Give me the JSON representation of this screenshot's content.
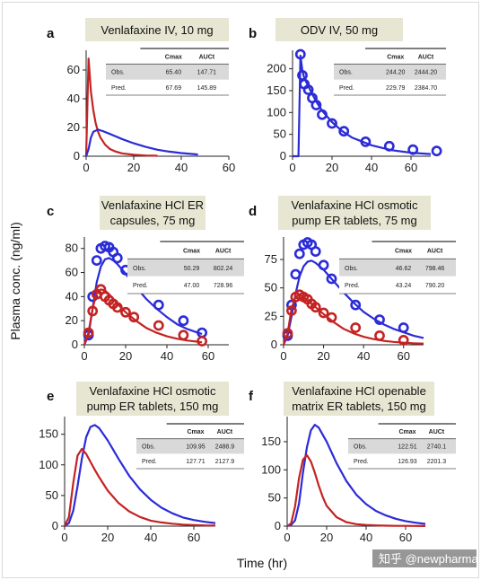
{
  "figure": {
    "xlabel": "Time (hr)",
    "ylabel": "Plasma conc. (ng/ml)",
    "watermark": "知乎 @newpharma",
    "colors": {
      "predicted_a": "#c42323",
      "observed": "#2b2bd8",
      "title_box": "#e6e6d2",
      "table_obs_row": "#d9d9d9"
    }
  },
  "table_headers": {
    "cmax": "Cmax",
    "auct": "AUCt",
    "obs": "Obs.",
    "pred": "Pred."
  },
  "chart_data": [
    {
      "type": "line",
      "letter": "a",
      "title": [
        "Venlafaxine IV, 10 mg"
      ],
      "xlim": [
        0,
        60
      ],
      "ylim": [
        0,
        70
      ],
      "xticks": [
        0,
        20,
        40,
        60
      ],
      "yticks": [
        0,
        20,
        40,
        60
      ],
      "table": {
        "obs": [
          "65.40",
          "147.71"
        ],
        "pred": [
          "67.69",
          "145.89"
        ]
      },
      "series": [
        {
          "color": "red",
          "type": "line",
          "x": [
            0,
            1,
            2,
            3,
            4,
            5,
            6,
            8,
            10,
            12,
            15,
            20,
            25,
            30
          ],
          "y": [
            0,
            68,
            45,
            32,
            23,
            17,
            13,
            8,
            5,
            3.5,
            2,
            1,
            0.5,
            0.3
          ]
        },
        {
          "color": "blue",
          "type": "line",
          "x": [
            0,
            1,
            2,
            3,
            5,
            7,
            10,
            15,
            20,
            25,
            30,
            35,
            40,
            45,
            47
          ],
          "y": [
            0,
            5,
            13,
            17,
            18.5,
            17.5,
            15.5,
            12,
            9,
            6.5,
            4.5,
            3.2,
            2.2,
            1.5,
            1.2
          ]
        }
      ]
    },
    {
      "type": "scatter",
      "letter": "b",
      "title": [
        "ODV IV, 50 mg"
      ],
      "xlim": [
        0,
        70
      ],
      "ylim": [
        0,
        230
      ],
      "xticks": [
        0,
        20,
        40,
        60
      ],
      "yticks": [
        0,
        50,
        100,
        150,
        200
      ],
      "table": {
        "obs": [
          "244.20",
          "2444.20"
        ],
        "pred": [
          "229.79",
          "2384.70"
        ]
      },
      "series": [
        {
          "color": "blue",
          "type": "line",
          "x": [
            0,
            3,
            4,
            5,
            6,
            8,
            10,
            12,
            15,
            20,
            25,
            30,
            40,
            50,
            60,
            70
          ],
          "y": [
            0,
            0,
            230,
            195,
            178,
            160,
            142,
            125,
            104,
            78,
            58,
            43,
            25,
            14,
            8,
            5
          ]
        },
        {
          "color": "blue",
          "type": "points",
          "x": [
            4,
            5,
            6,
            8,
            10,
            12,
            15,
            20,
            26,
            37,
            49,
            61,
            73
          ],
          "y": [
            233,
            185,
            165,
            152,
            133,
            117,
            95,
            75,
            57,
            33,
            23,
            15,
            12
          ]
        }
      ]
    },
    {
      "type": "line",
      "letter": "c",
      "title": [
        "Venlafaxine HCl ER",
        "capsules, 75 mg"
      ],
      "xlim": [
        0,
        70
      ],
      "ylim": [
        0,
        85
      ],
      "xticks": [
        0,
        20,
        40,
        60
      ],
      "yticks": [
        0,
        20,
        40,
        60,
        80
      ],
      "table": {
        "obs": [
          "50.29",
          "802.24"
        ],
        "pred": [
          "47.00",
          "728.96"
        ]
      },
      "series": [
        {
          "color": "blue",
          "type": "line",
          "x": [
            0,
            2,
            4,
            6,
            8,
            10,
            12,
            14,
            16,
            20,
            25,
            30,
            35,
            40,
            45,
            50,
            55,
            57
          ],
          "y": [
            0,
            8,
            30,
            52,
            65,
            71,
            72,
            70,
            67,
            59,
            48,
            38,
            30,
            23,
            17,
            13,
            10,
            9
          ]
        },
        {
          "color": "blue",
          "type": "points",
          "x": [
            2,
            4,
            6,
            8,
            10,
            12,
            14,
            16,
            20,
            24,
            36,
            48,
            57
          ],
          "y": [
            8,
            40,
            70,
            80,
            82,
            81,
            77,
            72,
            62,
            54,
            33,
            20,
            10
          ]
        },
        {
          "color": "red",
          "type": "line",
          "x": [
            0,
            2,
            4,
            6,
            8,
            10,
            12,
            14,
            16,
            20,
            25,
            30,
            35,
            40,
            45,
            50,
            55,
            57
          ],
          "y": [
            0,
            10,
            30,
            44,
            46,
            45,
            42,
            38,
            34,
            27,
            20,
            14,
            10,
            7,
            5,
            3.5,
            2.5,
            2
          ]
        },
        {
          "color": "red",
          "type": "points",
          "x": [
            2,
            4,
            6,
            8,
            10,
            12,
            14,
            16,
            20,
            24,
            36,
            48,
            57
          ],
          "y": [
            10,
            28,
            42,
            46,
            40,
            37,
            34,
            31,
            27,
            23,
            16,
            8,
            3
          ]
        }
      ]
    },
    {
      "type": "line",
      "letter": "d",
      "title": [
        "Venlafaxine HCl osmotic",
        "pump ER tablets, 75 mg"
      ],
      "xlim": [
        0,
        70
      ],
      "ylim": [
        0,
        90
      ],
      "xticks": [
        0,
        20,
        40,
        60
      ],
      "yticks": [
        0,
        25,
        50,
        75
      ],
      "table": {
        "obs": [
          "46.62",
          "798.46"
        ],
        "pred": [
          "43.24",
          "790.20"
        ]
      },
      "series": [
        {
          "color": "blue",
          "type": "line",
          "x": [
            0,
            2,
            4,
            6,
            8,
            10,
            12,
            14,
            16,
            20,
            25,
            30,
            35,
            40,
            45,
            50,
            55,
            60,
            65,
            70
          ],
          "y": [
            0,
            8,
            25,
            45,
            60,
            69,
            73,
            74,
            72,
            66,
            56,
            46,
            37,
            29,
            23,
            18,
            14,
            11,
            8,
            6
          ]
        },
        {
          "color": "blue",
          "type": "points",
          "x": [
            2,
            4,
            6,
            8,
            10,
            12,
            14,
            16,
            20,
            24,
            36,
            48,
            60
          ],
          "y": [
            8,
            35,
            62,
            80,
            88,
            90,
            88,
            82,
            70,
            58,
            35,
            22,
            15
          ]
        },
        {
          "color": "red",
          "type": "line",
          "x": [
            0,
            2,
            4,
            6,
            8,
            10,
            12,
            14,
            16,
            20,
            25,
            30,
            35,
            40,
            45,
            50,
            55,
            60,
            65,
            70
          ],
          "y": [
            0,
            10,
            32,
            42,
            44,
            42,
            39,
            36,
            33,
            27,
            20,
            14,
            10,
            7,
            5,
            3.5,
            2.5,
            1.8,
            1.3,
            1
          ]
        },
        {
          "color": "red",
          "type": "points",
          "x": [
            2,
            4,
            6,
            8,
            10,
            12,
            14,
            16,
            20,
            24,
            36,
            48,
            60
          ],
          "y": [
            10,
            30,
            42,
            44,
            42,
            40,
            36,
            33,
            28,
            24,
            15,
            8,
            4
          ]
        }
      ]
    },
    {
      "type": "line",
      "letter": "e",
      "title": [
        "Venlafaxine HCl osmotic",
        "pump ER tablets, 150 mg"
      ],
      "xlim": [
        0,
        70
      ],
      "ylim": [
        0,
        170
      ],
      "xticks": [
        0,
        20,
        40,
        60
      ],
      "yticks": [
        0,
        50,
        100,
        150
      ],
      "table": {
        "obs": [
          "109.95",
          "2488.9"
        ],
        "pred": [
          "127.71",
          "2127.9"
        ]
      },
      "series": [
        {
          "color": "blue",
          "type": "line",
          "x": [
            0,
            2,
            4,
            6,
            8,
            10,
            12,
            14,
            16,
            20,
            25,
            30,
            35,
            40,
            45,
            50,
            55,
            60,
            65,
            70
          ],
          "y": [
            0,
            5,
            25,
            65,
            110,
            145,
            162,
            165,
            160,
            140,
            110,
            82,
            60,
            43,
            30,
            21,
            14,
            10,
            7,
            5
          ]
        },
        {
          "color": "red",
          "type": "line",
          "x": [
            0,
            2,
            4,
            6,
            8,
            10,
            12,
            14,
            16,
            20,
            25,
            30,
            35,
            40,
            45,
            50,
            55,
            60,
            65,
            70
          ],
          "y": [
            0,
            15,
            70,
            115,
            126,
            118,
            105,
            92,
            80,
            58,
            38,
            24,
            15,
            9,
            6,
            4,
            2.5,
            1.8,
            1.2,
            1
          ]
        }
      ]
    },
    {
      "type": "line",
      "letter": "f",
      "title": [
        "Venlafaxine HCl openable",
        "matrix ER tablets, 150 mg"
      ],
      "xlim": [
        0,
        70
      ],
      "ylim": [
        0,
        185
      ],
      "xticks": [
        0,
        20,
        40,
        60
      ],
      "yticks": [
        0,
        50,
        100,
        150
      ],
      "table": {
        "obs": [
          "122.51",
          "2740.1"
        ],
        "pred": [
          "126.93",
          "2201.3"
        ]
      },
      "series": [
        {
          "color": "blue",
          "type": "line",
          "x": [
            0,
            2,
            4,
            6,
            8,
            10,
            12,
            14,
            16,
            20,
            25,
            30,
            35,
            40,
            45,
            50,
            55,
            60,
            65,
            70
          ],
          "y": [
            0,
            2,
            10,
            40,
            95,
            140,
            170,
            180,
            175,
            150,
            112,
            80,
            56,
            39,
            27,
            19,
            13,
            9,
            6,
            4
          ]
        },
        {
          "color": "red",
          "type": "line",
          "x": [
            0,
            2,
            4,
            6,
            8,
            10,
            12,
            14,
            16,
            18,
            20,
            25,
            30,
            35,
            40,
            45,
            50,
            55,
            60,
            65,
            70
          ],
          "y": [
            0,
            5,
            35,
            85,
            118,
            126,
            115,
            95,
            72,
            52,
            36,
            16,
            7,
            3.5,
            2,
            1.2,
            0.8,
            0.5,
            0.4,
            0.3,
            0.2
          ]
        }
      ]
    }
  ]
}
